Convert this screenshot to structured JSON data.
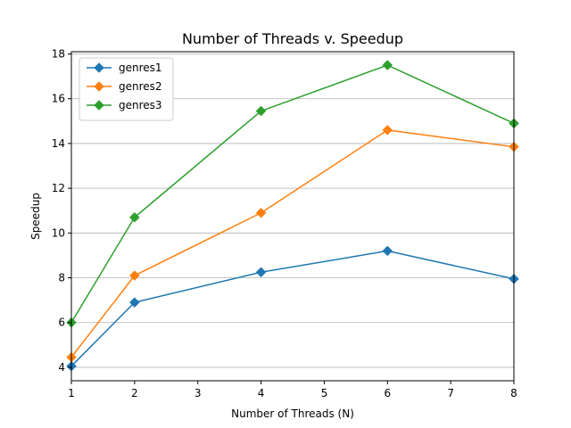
{
  "chart_data": {
    "type": "line",
    "title": "Number of Threads v. Speedup",
    "xlabel": "Number of Threads (N)",
    "ylabel": "Speedup",
    "xlim": [
      1,
      8
    ],
    "ylim": [
      3.4,
      18.1
    ],
    "x_ticks": [
      1,
      2,
      3,
      4,
      5,
      6,
      7,
      8
    ],
    "y_ticks": [
      4,
      6,
      8,
      10,
      12,
      14,
      16,
      18
    ],
    "grid": "horizontal",
    "legend_position": "top-left",
    "marker": "diamond",
    "x": [
      1,
      2,
      4,
      6,
      8
    ],
    "series": [
      {
        "name": "genres1",
        "color": "#1f77b4",
        "values": [
          4.05,
          6.9,
          8.25,
          9.2,
          7.95
        ]
      },
      {
        "name": "genres2",
        "color": "#ff7f0e",
        "values": [
          4.45,
          8.1,
          10.9,
          14.6,
          13.85
        ]
      },
      {
        "name": "genres3",
        "color": "#2ca02c",
        "values": [
          6.0,
          10.7,
          15.45,
          17.5,
          14.9
        ]
      }
    ]
  }
}
